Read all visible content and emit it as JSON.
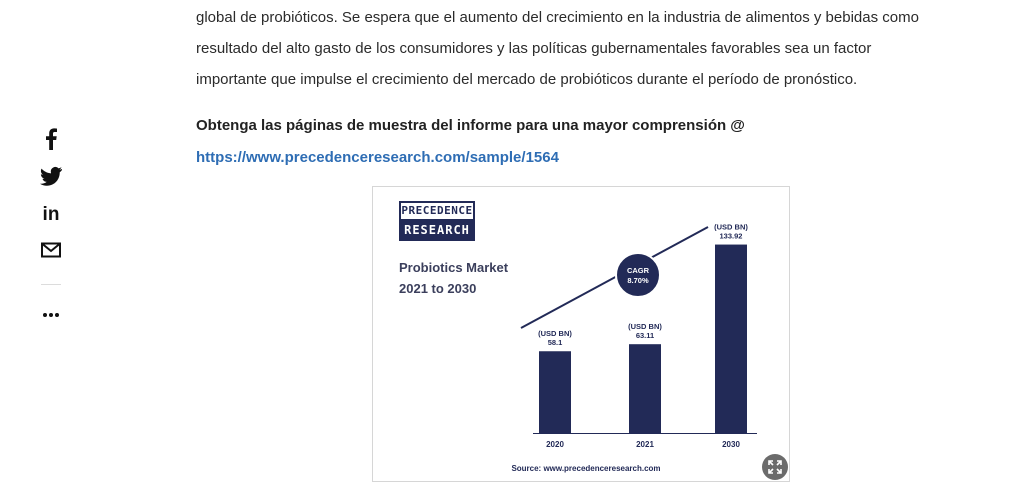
{
  "article": {
    "paragraph_lines": [
      "global de probióticos. Se espera que el aumento del crecimiento en la industria de alimentos y bebidas como",
      "resultado del alto gasto de los consumidores y las políticas gubernamentales favorables sea un factor",
      "importante que impulse el crecimiento del mercado de probióticos durante el período de pronóstico."
    ],
    "cta_text": "Obtenga las páginas de muestra del informe para una mayor comprensión @",
    "link_text": "https://www.precedenceresearch.com/sample/1564"
  },
  "share": {
    "icons": [
      "facebook-icon",
      "twitter-icon",
      "linkedin-icon",
      "mail-icon",
      "more-icon"
    ],
    "linkedin_label": "in"
  },
  "figure": {
    "logo_top": "PRECEDENCE",
    "logo_bottom": "RESEARCH",
    "title_line1": "Probiotics Market",
    "title_line2": "2021 to 2030",
    "source": "Source: www.precedenceresearch.com",
    "cagr_label": "CAGR",
    "cagr_value": "8.70%",
    "accent_color": "#222a57",
    "expand_icon": "expand-icon"
  },
  "chart_data": {
    "type": "bar",
    "categories": [
      "2020",
      "2021",
      "2030"
    ],
    "values": [
      58.1,
      63.11,
      133.92
    ],
    "value_labels": [
      "58.1",
      "63.11",
      "133.92"
    ],
    "unit_label": "(USD BN)",
    "title": "Probiotics Market 2021 to 2030",
    "annotation": "CAGR 8.70%",
    "ylim": [
      0,
      140
    ],
    "grid": false,
    "legend": "none"
  }
}
